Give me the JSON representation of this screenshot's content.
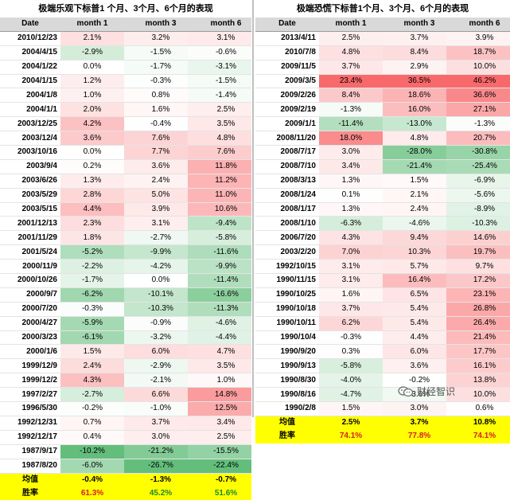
{
  "left": {
    "title": "极端乐观下标普1 个月、3个月、6个月的表现",
    "headers": [
      "Date",
      "month 1",
      "month 3",
      "month 6"
    ],
    "rows": [
      [
        "2010/12/23",
        "2.1%",
        "3.2%",
        "3.1%"
      ],
      [
        "2004/4/15",
        "-2.9%",
        "-1.5%",
        "-0.6%"
      ],
      [
        "2004/1/22",
        "0.0%",
        "-1.7%",
        "-3.1%"
      ],
      [
        "2004/1/15",
        "1.2%",
        "-0.3%",
        "-1.5%"
      ],
      [
        "2004/1/8",
        "1.0%",
        "0.8%",
        "-1.4%"
      ],
      [
        "2004/1/1",
        "2.0%",
        "1.6%",
        "2.5%"
      ],
      [
        "2003/12/25",
        "4.2%",
        "-0.4%",
        "3.5%"
      ],
      [
        "2003/12/4",
        "3.6%",
        "7.6%",
        "4.8%"
      ],
      [
        "2003/10/16",
        "0.0%",
        "7.7%",
        "7.6%"
      ],
      [
        "2003/9/4",
        "0.2%",
        "3.6%",
        "11.8%"
      ],
      [
        "2003/6/26",
        "1.3%",
        "2.4%",
        "11.2%"
      ],
      [
        "2003/5/29",
        "2.8%",
        "5.0%",
        "11.0%"
      ],
      [
        "2003/5/15",
        "4.4%",
        "3.9%",
        "10.6%"
      ],
      [
        "2001/12/13",
        "2.3%",
        "3.1%",
        "-9.4%"
      ],
      [
        "2001/11/29",
        "1.8%",
        "-2.7%",
        "-5.8%"
      ],
      [
        "2001/5/24",
        "-5.2%",
        "-9.9%",
        "-11.6%"
      ],
      [
        "2000/11/9",
        "-2.2%",
        "-4.2%",
        "-9.9%"
      ],
      [
        "2000/10/26",
        "-1.7%",
        "0.0%",
        "-11.4%"
      ],
      [
        "2000/9/7",
        "-6.2%",
        "-10.1%",
        "-16.6%"
      ],
      [
        "2000/7/20",
        "-0.3%",
        "-10.3%",
        "-11.3%"
      ],
      [
        "2000/4/27",
        "-5.9%",
        "-0.9%",
        "-4.6%"
      ],
      [
        "2000/3/23",
        "-6.1%",
        "-3.2%",
        "-4.4%"
      ],
      [
        "2000/1/6",
        "1.5%",
        "6.0%",
        "4.7%"
      ],
      [
        "1999/12/9",
        "2.4%",
        "-2.9%",
        "3.5%"
      ],
      [
        "1999/12/2",
        "4.3%",
        "-2.1%",
        "1.0%"
      ],
      [
        "1997/2/27",
        "-2.7%",
        "6.6%",
        "14.8%"
      ],
      [
        "1996/5/30",
        "-0.2%",
        "-1.0%",
        "12.5%"
      ],
      [
        "1992/12/31",
        "0.7%",
        "3.7%",
        "3.4%"
      ],
      [
        "1992/12/17",
        "0.4%",
        "3.0%",
        "2.5%"
      ],
      [
        "1987/9/17",
        "-10.2%",
        "-21.2%",
        "-15.5%"
      ],
      [
        "1987/8/20",
        "-6.0%",
        "-26.7%",
        "-22.4%"
      ]
    ],
    "avg_label": "均值",
    "avg": [
      "-0.4%",
      "-1.3%",
      "-0.7%"
    ],
    "win_label": "胜率",
    "win": [
      "61.3%",
      "45.2%",
      "51.6%"
    ]
  },
  "right": {
    "title": "极端恐慌下标普1个月、3个月、6个月的表现",
    "headers": [
      "Date",
      "month 1",
      "month 3",
      "month 6"
    ],
    "rows": [
      [
        "2013/4/11",
        "2.5%",
        "3.7%",
        "3.9%"
      ],
      [
        "2010/7/8",
        "4.8%",
        "8.4%",
        "18.7%"
      ],
      [
        "2009/11/5",
        "3.7%",
        "2.9%",
        "10.0%"
      ],
      [
        "2009/3/5",
        "23.4%",
        "36.5%",
        "46.2%"
      ],
      [
        "2009/2/26",
        "8.4%",
        "18.6%",
        "36.6%"
      ],
      [
        "2009/2/19",
        "-1.3%",
        "16.0%",
        "27.1%"
      ],
      [
        "2009/1/1",
        "-11.4%",
        "-13.0%",
        "-1.3%"
      ],
      [
        "2008/11/20",
        "18.0%",
        "4.8%",
        "20.7%"
      ],
      [
        "2008/7/17",
        "3.0%",
        "-28.0%",
        "-30.8%"
      ],
      [
        "2008/7/10",
        "3.4%",
        "-21.4%",
        "-25.4%"
      ],
      [
        "2008/3/13",
        "1.3%",
        "1.5%",
        "-6.9%"
      ],
      [
        "2008/1/24",
        "0.1%",
        "2.1%",
        "-5.6%"
      ],
      [
        "2008/1/17",
        "1.3%",
        "2.4%",
        "-8.9%"
      ],
      [
        "2008/1/10",
        "-6.3%",
        "-4.6%",
        "-10.3%"
      ],
      [
        "2006/7/20",
        "4.3%",
        "9.4%",
        "14.6%"
      ],
      [
        "2003/2/20",
        "7.0%",
        "10.3%",
        "19.7%"
      ],
      [
        "1992/10/15",
        "3.1%",
        "5.7%",
        "9.7%"
      ],
      [
        "1990/11/15",
        "3.1%",
        "16.4%",
        "17.2%"
      ],
      [
        "1990/10/25",
        "1.6%",
        "6.5%",
        "23.1%"
      ],
      [
        "1990/10/18",
        "3.7%",
        "5.4%",
        "26.8%"
      ],
      [
        "1990/10/11",
        "6.2%",
        "5.4%",
        "26.4%"
      ],
      [
        "1990/10/4",
        "-0.3%",
        "4.4%",
        "21.4%"
      ],
      [
        "1990/9/20",
        "0.3%",
        "6.0%",
        "17.7%"
      ],
      [
        "1990/9/13",
        "-5.8%",
        "3.6%",
        "16.1%"
      ],
      [
        "1990/8/30",
        "-4.0%",
        "-0.2%",
        "13.8%"
      ],
      [
        "1990/8/16",
        "-4.7%",
        "-3.6%",
        "10.0%"
      ],
      [
        "1990/2/8",
        "1.5%",
        "3.0%",
        "0.6%"
      ]
    ],
    "avg_label": "均值",
    "avg": [
      "2.5%",
      "3.7%",
      "10.8%"
    ],
    "win_label": "胜率",
    "win": [
      "74.1%",
      "77.8%",
      "74.1%"
    ]
  },
  "colors": {
    "positive_max": "#f8696b",
    "negative_max": "#63be7b",
    "neutral": "#ffffff",
    "header_bg": "#d9d9d9",
    "summary_bg": "#ffff00",
    "win_red": "#d62020",
    "win_green": "#1a8a2a"
  },
  "watermark": {
    "icon": "wechat-icon",
    "text": "财经智识"
  }
}
